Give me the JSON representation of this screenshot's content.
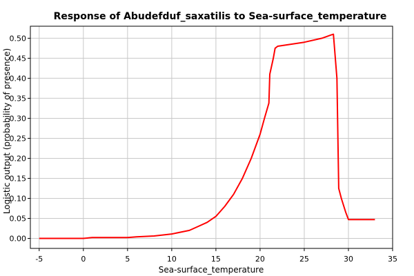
{
  "chart_data": {
    "type": "line",
    "title": "Response of Abudefduf_saxatilis to Sea-surface_temperature",
    "xlabel": "Sea-surface_temperature",
    "ylabel": "Logistic output (probability of presence)",
    "xlim": [
      -6,
      35
    ],
    "ylim": [
      -0.025,
      0.53
    ],
    "xticks": [
      -5,
      0,
      5,
      10,
      15,
      20,
      25,
      30,
      35
    ],
    "yticks": [
      0.0,
      0.05,
      0.1,
      0.15,
      0.2,
      0.25,
      0.3,
      0.35,
      0.4,
      0.45,
      0.5
    ],
    "grid": true,
    "colors": {
      "line": "#ff0000",
      "grid": "#c8c8c8",
      "frame": "#000000"
    },
    "series": [
      {
        "x": [
          -5,
          0,
          1,
          5,
          6,
          8,
          10,
          12,
          13,
          14,
          15,
          16,
          17,
          18,
          19,
          20,
          20.5,
          21,
          21.1,
          21.5,
          21.7,
          22,
          25,
          27,
          28,
          28.3,
          28.7,
          28.9,
          29.2,
          29.7,
          30,
          33
        ],
        "y": [
          0.0,
          0.0,
          0.002,
          0.002,
          0.004,
          0.006,
          0.011,
          0.02,
          0.03,
          0.04,
          0.055,
          0.08,
          0.11,
          0.15,
          0.2,
          0.26,
          0.3,
          0.338,
          0.41,
          0.45,
          0.475,
          0.48,
          0.49,
          0.5,
          0.508,
          0.51,
          0.4,
          0.125,
          0.1,
          0.065,
          0.047,
          0.047
        ]
      }
    ]
  }
}
